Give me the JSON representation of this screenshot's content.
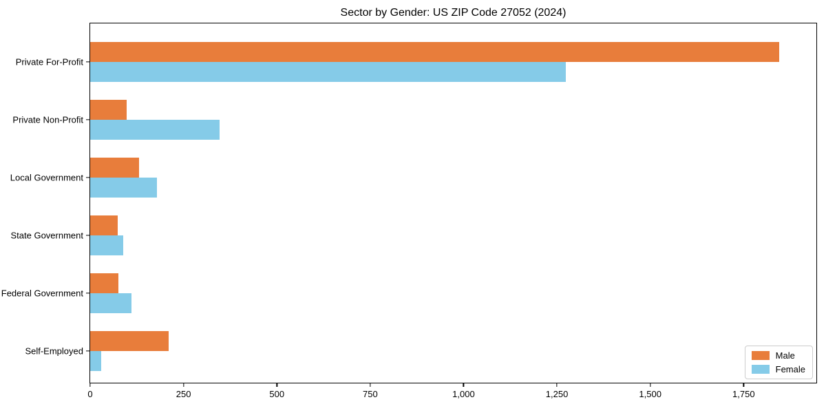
{
  "chart_data": {
    "type": "bar",
    "orientation": "horizontal",
    "title": "Sector by Gender: US ZIP Code 27052 (2024)",
    "categories": [
      "Private For-Profit",
      "Private Non-Profit",
      "Local Government",
      "State Government",
      "Federal Government",
      "Self-Employed"
    ],
    "series": [
      {
        "name": "Male",
        "color": "#e87d3b",
        "values": [
          1845,
          98,
          131,
          73,
          76,
          211
        ]
      },
      {
        "name": "Female",
        "color": "#85cbe8",
        "values": [
          1274,
          347,
          178,
          88,
          110,
          30
        ]
      }
    ],
    "xlabel": "",
    "ylabel": "",
    "xlim": [
      0,
      1943
    ],
    "x_ticks": [
      0,
      250,
      500,
      750,
      1000,
      1250,
      1500,
      1750
    ],
    "x_tick_labels": [
      "0",
      "250",
      "500",
      "750",
      "1,000",
      "1,250",
      "1,500",
      "1,750"
    ],
    "grid": false,
    "legend_position": "lower right",
    "colors": {
      "background": "#ffffff",
      "spine": "#000000",
      "legend_border": "#cccccc",
      "male": "#e87d3b",
      "female": "#85cbe8"
    }
  }
}
